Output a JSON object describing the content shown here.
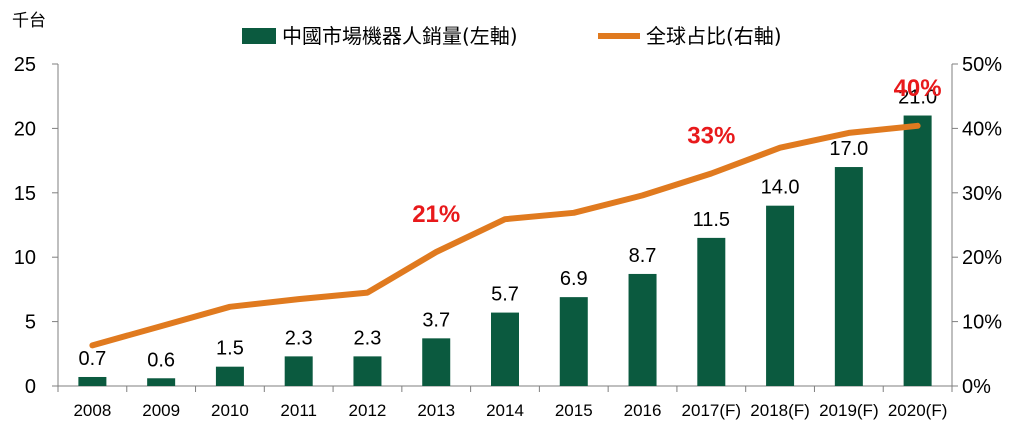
{
  "chart_data": {
    "type": "bar",
    "categories": [
      "2008",
      "2009",
      "2010",
      "2011",
      "2012",
      "2013",
      "2014",
      "2015",
      "2016",
      "2017(F)",
      "2018(F)",
      "2019(F)",
      "2020(F)"
    ],
    "series": [
      {
        "name": "中國市場機器人銷量(左軸)",
        "type": "bar",
        "axis": "left",
        "color": "#0b5a3f",
        "values": [
          0.7,
          0.6,
          1.5,
          2.3,
          2.3,
          3.7,
          5.7,
          6.9,
          8.7,
          11.5,
          14.0,
          17.0,
          21.0
        ],
        "labels": [
          "0.7",
          "0.6",
          "1.5",
          "2.3",
          "2.3",
          "3.7",
          "5.7",
          "6.9",
          "8.7",
          "11.5",
          "14.0",
          "17.0",
          "21.0"
        ]
      },
      {
        "name": "全球占比(右軸)",
        "type": "line",
        "axis": "right",
        "color": "#e07a1f",
        "values": [
          6.3,
          9.3,
          12.3,
          13.5,
          14.5,
          20.8,
          25.9,
          26.9,
          29.6,
          33.0,
          37.0,
          39.3,
          40.4
        ]
      }
    ],
    "y_left": {
      "label": "千台",
      "ylim": [
        0,
        25
      ],
      "ticks": [
        "0",
        "5",
        "10",
        "15",
        "20",
        "25"
      ]
    },
    "y_right": {
      "ylim": [
        0,
        50
      ],
      "ticks": [
        "0%",
        "10%",
        "20%",
        "30%",
        "40%",
        "50%"
      ]
    },
    "annotations": [
      {
        "text": "21%",
        "category_index": 5,
        "color": "#e8191b"
      },
      {
        "text": "33%",
        "category_index": 9,
        "color": "#e8191b"
      },
      {
        "text": "40%",
        "category_index": 12,
        "color": "#e8191b"
      }
    ],
    "legend_position": "top",
    "grid": false
  }
}
